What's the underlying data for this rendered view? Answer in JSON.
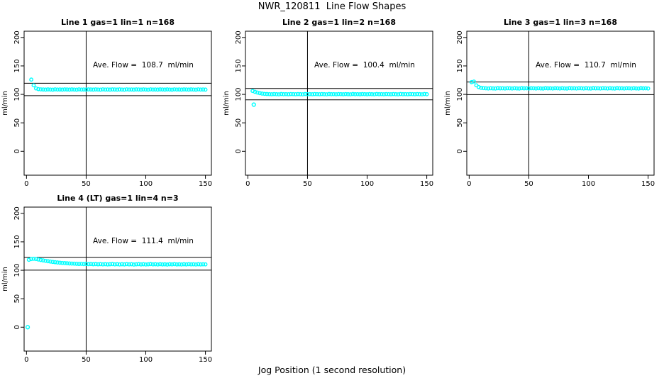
{
  "title": "NWR_120811  Line Flow Shapes",
  "xlabel": "Jog Position (1 second resolution)",
  "chart_data": {
    "type": "scatter",
    "title": "NWR_120811  Line Flow Shapes",
    "xlabel": "Jog Position (1 second resolution)",
    "ylabel": "ml/min",
    "marker": "open-circle",
    "marker_color": "#00FFFF",
    "axis_color": "#000000",
    "xlim": [
      -2,
      155
    ],
    "ylim": [
      -42,
      211
    ],
    "x_ticks": [
      0,
      50,
      100,
      150
    ],
    "y_ticks": [
      0,
      50,
      100,
      150,
      200
    ],
    "vline_x": 50,
    "legend": "none",
    "grid": "off",
    "panels": [
      {
        "title": "Line 1 gas=1 lin=1 n=168",
        "annotation": "Ave. Flow =  108.7  ml/min",
        "ave_flow": 108.7,
        "ref_lines": [
          119.6,
          97.8
        ],
        "series": {
          "x_start": 4,
          "x_step": 2,
          "y": [
            126.0,
            116.0,
            110.5,
            109.2,
            108.8,
            108.6,
            108.4,
            108.7,
            108.5,
            108.3,
            108.8,
            108.5,
            108.6,
            108.4,
            108.7,
            108.6,
            108.4,
            108.7,
            108.5,
            108.3,
            108.8,
            108.5,
            108.6,
            108.4,
            108.7,
            108.6,
            108.4,
            108.7,
            108.5,
            108.3,
            108.8,
            108.5,
            108.6,
            108.4,
            108.7,
            108.6,
            108.4,
            108.7,
            108.5,
            108.3,
            108.8,
            108.5,
            108.6,
            108.4,
            108.7,
            108.6,
            108.4,
            108.7,
            108.5,
            108.3,
            108.8,
            108.5,
            108.6,
            108.4,
            108.7,
            108.6,
            108.4,
            108.7,
            108.5,
            108.3,
            108.8,
            108.5,
            108.6,
            108.4,
            108.7,
            108.6,
            108.4,
            108.7,
            108.5,
            108.3,
            108.8,
            108.5,
            108.6,
            108.4
          ]
        },
        "extra_points": []
      },
      {
        "title": "Line 2 gas=1 lin=2 n=168",
        "annotation": "Ave. Flow =  100.4  ml/min",
        "ave_flow": 100.4,
        "ref_lines": [
          110.4,
          90.4
        ],
        "series": {
          "x_start": 4,
          "x_step": 2,
          "y": [
            106.0,
            104.5,
            103.2,
            102.2,
            101.4,
            100.9,
            100.6,
            100.4,
            100.2,
            100.5,
            100.3,
            100.1,
            100.6,
            100.3,
            100.4,
            100.2,
            100.5,
            100.4,
            100.2,
            100.5,
            100.3,
            100.1,
            100.6,
            100.3,
            100.4,
            100.2,
            100.5,
            100.4,
            100.2,
            100.5,
            100.3,
            100.1,
            100.6,
            100.3,
            100.4,
            100.2,
            100.5,
            100.4,
            100.2,
            100.5,
            100.3,
            100.1,
            100.6,
            100.3,
            100.4,
            100.2,
            100.5,
            100.4,
            100.2,
            100.5,
            100.3,
            100.1,
            100.6,
            100.3,
            100.4,
            100.2,
            100.5,
            100.4,
            100.2,
            100.5,
            100.3,
            100.1,
            100.6,
            100.3,
            100.4,
            100.2,
            100.5,
            100.4,
            100.2,
            100.5,
            100.3,
            100.1,
            100.6,
            100.3
          ]
        },
        "extra_points": [
          [
            5,
            82
          ]
        ]
      },
      {
        "title": "Line 3 gas=1 lin=3 n=168",
        "annotation": "Ave. Flow =  110.7  ml/min",
        "ave_flow": 110.7,
        "ref_lines": [
          121.8,
          99.6
        ],
        "series": {
          "x_start": 2,
          "x_step": 2,
          "y": [
            121.5,
            122.5,
            116.0,
            112.8,
            111.5,
            111.0,
            110.7,
            110.4,
            110.8,
            110.5,
            110.3,
            110.9,
            110.6,
            110.7,
            110.4,
            110.8,
            110.7,
            110.4,
            110.8,
            110.5,
            110.3,
            110.9,
            110.6,
            110.7,
            110.4,
            110.8,
            110.7,
            110.4,
            110.8,
            110.5,
            110.3,
            110.9,
            110.6,
            110.7,
            110.4,
            110.8,
            110.7,
            110.4,
            110.8,
            110.5,
            110.3,
            110.9,
            110.6,
            110.7,
            110.4,
            110.8,
            110.7,
            110.4,
            110.8,
            110.5,
            110.3,
            110.9,
            110.6,
            110.7,
            110.4,
            110.8,
            110.7,
            110.4,
            110.8,
            110.5,
            110.3,
            110.9,
            110.6,
            110.7,
            110.4,
            110.8,
            110.7,
            110.4,
            110.8,
            110.5,
            110.3,
            110.9,
            110.6,
            110.7,
            110.4
          ]
        },
        "extra_points": []
      },
      {
        "title": "Line 4 (LT) gas=1 lin=4 n=3",
        "annotation": "Ave. Flow =  111.4  ml/min",
        "ave_flow": 111.4,
        "ref_lines": [
          122.5,
          100.3
        ],
        "series": {
          "x_start": 2,
          "x_step": 2,
          "y": [
            118.5,
            119.8,
            120.2,
            119.7,
            118.9,
            118.1,
            117.3,
            116.6,
            115.9,
            115.3,
            114.7,
            114.2,
            113.7,
            113.3,
            112.9,
            112.6,
            112.3,
            112.0,
            111.8,
            111.6,
            111.4,
            111.1,
            111.3,
            110.9,
            111.2,
            110.8,
            111.0,
            110.6,
            110.9,
            110.5,
            110.8,
            110.4,
            110.7,
            110.3,
            110.6,
            110.9,
            110.4,
            110.7,
            110.2,
            110.6,
            110.3,
            110.8,
            110.4,
            110.6,
            110.1,
            110.5,
            110.8,
            110.3,
            110.6,
            110.2,
            110.5,
            110.9,
            110.4,
            110.6,
            110.2,
            110.7,
            110.3,
            110.5,
            110.1,
            110.6,
            110.4,
            110.8,
            110.3,
            110.5,
            110.2,
            110.6,
            110.3,
            110.7,
            110.4,
            110.5,
            110.2,
            110.6,
            110.3,
            110.5,
            110.4
          ]
        },
        "extra_points": [
          [
            1,
            0
          ]
        ]
      }
    ]
  }
}
